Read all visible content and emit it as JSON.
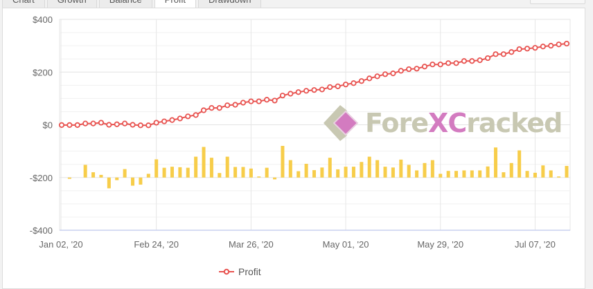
{
  "tabs": [
    {
      "label": "Chart"
    },
    {
      "label": "Growth"
    },
    {
      "label": "Balance"
    },
    {
      "label": "Profit",
      "active": true
    },
    {
      "label": "Drawdown"
    }
  ],
  "watermark": {
    "text_a": "Fore",
    "text_x": "X",
    "text_c": "C",
    "text_b": "racked"
  },
  "colors": {
    "line": "#e8524f",
    "bar": "#f7cd4a",
    "grid": "#e6e6e6",
    "axis": "#c8d0ef"
  },
  "chart_data": {
    "type": "line+bar",
    "ylim": [
      -400,
      400
    ],
    "y_ticks": [
      "$400",
      "$200",
      "$0",
      "-$200",
      "-$400"
    ],
    "y_tick_values": [
      400,
      200,
      0,
      -200,
      -400
    ],
    "x_ticks": [
      {
        "label": "Jan 02, '20",
        "index": 0
      },
      {
        "label": "Feb 24, '20",
        "index": 12
      },
      {
        "label": "Mar 26, '20",
        "index": 24
      },
      {
        "label": "May 01, '20",
        "index": 36
      },
      {
        "label": "May 29, '20",
        "index": 48
      },
      {
        "label": "Jul 07, '20",
        "index": 60
      }
    ],
    "grid": true,
    "legend": {
      "position": "bottom",
      "entries": [
        {
          "name": "Profit"
        }
      ]
    },
    "series": [
      {
        "name": "Profit",
        "type": "line",
        "values": [
          -1,
          -1,
          -1,
          5,
          5,
          8,
          0,
          2,
          5,
          0,
          -2,
          -2,
          8,
          13,
          18,
          24,
          32,
          37,
          55,
          64,
          64,
          74,
          76,
          84,
          89,
          89,
          95,
          92,
          111,
          118,
          124,
          129,
          132,
          134,
          143,
          146,
          153,
          158,
          166,
          176,
          184,
          192,
          195,
          205,
          211,
          213,
          221,
          229,
          229,
          234,
          234,
          242,
          242,
          245,
          253,
          268,
          268,
          276,
          287,
          289,
          292,
          297,
          300,
          305,
          308
        ]
      },
      {
        "type": "bar",
        "baseline": -200,
        "values": [
          0,
          -5,
          0,
          48,
          20,
          10,
          -41,
          -10,
          32,
          -31,
          -27,
          14,
          69,
          37,
          41,
          39,
          37,
          79,
          116,
          75,
          17,
          79,
          40,
          40,
          34,
          4,
          37,
          -7,
          120,
          66,
          24,
          52,
          28,
          38,
          75,
          31,
          41,
          41,
          59,
          79,
          66,
          41,
          38,
          68,
          48,
          27,
          55,
          66,
          14,
          25,
          25,
          27,
          27,
          27,
          42,
          114,
          20,
          55,
          103,
          25,
          18,
          46,
          27,
          4,
          44
        ]
      }
    ]
  }
}
